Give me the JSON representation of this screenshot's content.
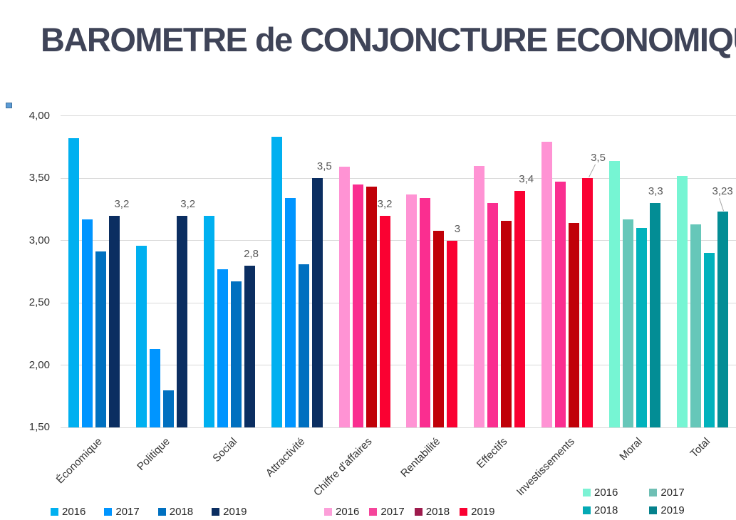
{
  "title": "BAROMETRE de CONJONCTURE ECONOMIQUE",
  "chart_data": {
    "type": "bar",
    "title": "BAROMETRE de CONJONCTURE ECONOMIQUE",
    "categories": [
      "Économique",
      "Politique",
      "Social",
      "Attractivité",
      "Chiffre d'affaires",
      "Rentabilité",
      "Effectifs",
      "Investissements",
      "Moral",
      "Total"
    ],
    "series": [
      {
        "name": "2016",
        "values": [
          3.82,
          2.96,
          3.2,
          3.83,
          3.59,
          3.37,
          3.6,
          3.79,
          3.64,
          3.52
        ]
      },
      {
        "name": "2017",
        "values": [
          3.17,
          2.13,
          2.77,
          3.34,
          3.45,
          3.34,
          3.3,
          3.47,
          3.17,
          3.13
        ]
      },
      {
        "name": "2018",
        "values": [
          2.91,
          1.8,
          2.67,
          2.81,
          3.43,
          3.08,
          3.16,
          3.14,
          3.1,
          2.9
        ]
      },
      {
        "name": "2019",
        "values": [
          3.2,
          3.2,
          2.8,
          3.5,
          3.2,
          3.0,
          3.4,
          3.5,
          3.3,
          3.23
        ]
      }
    ],
    "data_labels": {
      "series": "2019",
      "texts": [
        "3,2",
        "3,2",
        "2,8",
        "3,5",
        "3,2",
        "3",
        "3,4",
        "3,5",
        "3,3",
        "3,23"
      ],
      "leader_lines": [
        false,
        false,
        false,
        false,
        false,
        false,
        false,
        true,
        false,
        true
      ]
    },
    "palettes": {
      "blue": [
        "#00B0F0",
        "#0095FF",
        "#0070C0",
        "#0B2E61"
      ],
      "pink": [
        "#FF93D4",
        "#FA2E90",
        "#C00008",
        "#FA0132"
      ],
      "teal": [
        "#76F5D3",
        "#66C7B9",
        "#00B2BC",
        "#038D95"
      ]
    },
    "category_palette": [
      "blue",
      "blue",
      "blue",
      "blue",
      "pink",
      "pink",
      "pink",
      "pink",
      "teal",
      "teal"
    ],
    "y_axis": {
      "min": 1.5,
      "max": 4.0,
      "tick_labels": [
        "4,00",
        "3,50",
        "3,00",
        "2,50",
        "2,00",
        "1,50"
      ],
      "tick_values": [
        4.0,
        3.5,
        3.0,
        2.5,
        2.0,
        1.5
      ],
      "gridlines": true,
      "gridline_color": "#D9D9D9"
    },
    "legend_position": "bottom: three separate legends (blue group, pink group, teal group)"
  },
  "legends": {
    "blue": [
      {
        "label": "2016",
        "color": "#00B0F0"
      },
      {
        "label": "2017",
        "color": "#0095FF"
      },
      {
        "label": "2018",
        "color": "#0070C0"
      },
      {
        "label": "2019",
        "color": "#0B2E61"
      }
    ],
    "pink": [
      {
        "label": "2016",
        "color": "#FC9FD9"
      },
      {
        "label": "2017",
        "color": "#F5459B"
      },
      {
        "label": "2018",
        "color": "#9E1B4D"
      },
      {
        "label": "2019",
        "color": "#FA0132"
      }
    ],
    "teal": [
      {
        "label": "2016",
        "color": "#7CF2D4"
      },
      {
        "label": "2017",
        "color": "#6FBFB4"
      },
      {
        "label": "2018",
        "color": "#04A9B4"
      },
      {
        "label": "2019",
        "color": "#05818C"
      }
    ]
  },
  "decor": {
    "corner_marker_fill": "#5B9BD5",
    "corner_marker_border": "#41719C"
  },
  "text_colors": {
    "title": "#3F4458",
    "axis_labels": "#333333",
    "data_labels": "#595959",
    "legend_labels": "#262626"
  }
}
